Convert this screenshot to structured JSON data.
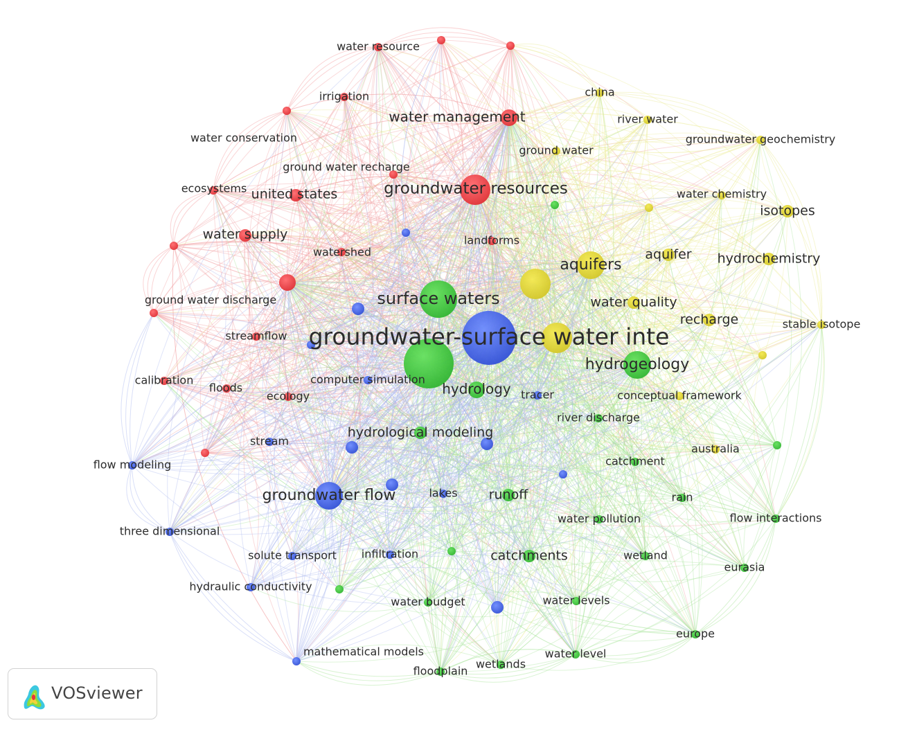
{
  "colors": {
    "cluster_red": "#e8363b",
    "cluster_green": "#3cc23c",
    "cluster_blue": "#3b5de0",
    "cluster_yellow": "#dcd030",
    "edge_red": "#f3a0a2",
    "edge_green": "#a9e59a",
    "edge_blue": "#aab9ef",
    "edge_yellow": "#ecec9c",
    "label": "#2b2b2b"
  },
  "brand": {
    "name": "VOSviewer",
    "logo_icon": "vosviewer-logo-icon"
  },
  "nodes": [
    {
      "id": "n1",
      "label": "water resource",
      "c": "red",
      "w": 2
    },
    {
      "id": "n2",
      "label": "irrigation",
      "c": "red",
      "w": 2
    },
    {
      "id": "n3",
      "label": "water management",
      "c": "red",
      "w": 4
    },
    {
      "id": "n4",
      "label": "water conservation",
      "c": "red",
      "w": 2
    },
    {
      "id": "n5",
      "label": "ground water recharge",
      "c": "red",
      "w": 2
    },
    {
      "id": "n6",
      "label": "ecosystems",
      "c": "red",
      "w": 2
    },
    {
      "id": "n7",
      "label": "united states",
      "c": "red",
      "w": 3
    },
    {
      "id": "n8",
      "label": "groundwater resources",
      "c": "red",
      "w": 6
    },
    {
      "id": "n9",
      "label": "water supply",
      "c": "red",
      "w": 3
    },
    {
      "id": "n10",
      "label": "watershed",
      "c": "red",
      "w": 2
    },
    {
      "id": "n11",
      "label": "landforms",
      "c": "red",
      "w": 2
    },
    {
      "id": "n12",
      "label": "ground water discharge",
      "c": "red",
      "w": 2
    },
    {
      "id": "n13",
      "label": "streamflow",
      "c": "red",
      "w": 2
    },
    {
      "id": "n14",
      "label": "calibration",
      "c": "red",
      "w": 2
    },
    {
      "id": "n15",
      "label": "floods",
      "c": "red",
      "w": 2
    },
    {
      "id": "n16",
      "label": "ecology",
      "c": "red",
      "w": 2
    },
    {
      "id": "n17",
      "label": "",
      "c": "red",
      "w": 4
    },
    {
      "id": "n18",
      "label": "",
      "c": "red",
      "w": 2
    },
    {
      "id": "n19",
      "label": "",
      "c": "red",
      "w": 2
    },
    {
      "id": "n20",
      "label": "",
      "c": "red",
      "w": 2
    },
    {
      "id": "n21",
      "label": "",
      "c": "red",
      "w": 2
    },
    {
      "id": "n22",
      "label": "china",
      "c": "yellow",
      "w": 2
    },
    {
      "id": "n23",
      "label": "river water",
      "c": "yellow",
      "w": 2
    },
    {
      "id": "n24",
      "label": "groundwater geochemistry",
      "c": "yellow",
      "w": 2
    },
    {
      "id": "n25",
      "label": "ground water",
      "c": "yellow",
      "w": 2
    },
    {
      "id": "n26",
      "label": "water chemistry",
      "c": "yellow",
      "w": 2
    },
    {
      "id": "n27",
      "label": "isotopes",
      "c": "yellow",
      "w": 3
    },
    {
      "id": "n28",
      "label": "aquifer",
      "c": "yellow",
      "w": 3
    },
    {
      "id": "n29",
      "label": "hydrochemistry",
      "c": "yellow",
      "w": 3
    },
    {
      "id": "n30",
      "label": "aquifers",
      "c": "yellow",
      "w": 5
    },
    {
      "id": "n31",
      "label": "water quality",
      "c": "yellow",
      "w": 3
    },
    {
      "id": "n32",
      "label": "recharge",
      "c": "yellow",
      "w": 3
    },
    {
      "id": "n33",
      "label": "stable isotope",
      "c": "yellow",
      "w": 2
    },
    {
      "id": "n34",
      "label": "conceptual framework",
      "c": "yellow",
      "w": 2
    },
    {
      "id": "n35",
      "label": "australia",
      "c": "yellow",
      "w": 2
    },
    {
      "id": "n36",
      "label": "",
      "c": "yellow",
      "w": 6
    },
    {
      "id": "n37",
      "label": "",
      "c": "yellow",
      "w": 6
    },
    {
      "id": "n38",
      "label": "",
      "c": "yellow",
      "w": 2
    },
    {
      "id": "n39",
      "label": "",
      "c": "yellow",
      "w": 2
    },
    {
      "id": "n40",
      "label": "surface waters",
      "c": "green",
      "w": 7
    },
    {
      "id": "n41",
      "label": "hydrology",
      "c": "green",
      "w": 4
    },
    {
      "id": "n42",
      "label": "hydrogeology",
      "c": "green",
      "w": 5
    },
    {
      "id": "n43",
      "label": "hydrological modeling",
      "c": "green",
      "w": 3
    },
    {
      "id": "n44",
      "label": "runoff",
      "c": "green",
      "w": 3
    },
    {
      "id": "n45",
      "label": "catchment",
      "c": "green",
      "w": 2
    },
    {
      "id": "n46",
      "label": "river discharge",
      "c": "green",
      "w": 2
    },
    {
      "id": "n47",
      "label": "rain",
      "c": "green",
      "w": 2
    },
    {
      "id": "n48",
      "label": "water pollution",
      "c": "green",
      "w": 2
    },
    {
      "id": "n49",
      "label": "flow interactions",
      "c": "green",
      "w": 2
    },
    {
      "id": "n50",
      "label": "catchments",
      "c": "green",
      "w": 3
    },
    {
      "id": "n51",
      "label": "wetland",
      "c": "green",
      "w": 2
    },
    {
      "id": "n52",
      "label": "eurasia",
      "c": "green",
      "w": 2
    },
    {
      "id": "n53",
      "label": "water budget",
      "c": "green",
      "w": 2
    },
    {
      "id": "n54",
      "label": "water levels",
      "c": "green",
      "w": 2
    },
    {
      "id": "n55",
      "label": "europe",
      "c": "green",
      "w": 2
    },
    {
      "id": "n56",
      "label": "water level",
      "c": "green",
      "w": 2
    },
    {
      "id": "n57",
      "label": "wetlands",
      "c": "green",
      "w": 2
    },
    {
      "id": "n58",
      "label": "floodplain",
      "c": "green",
      "w": 2
    },
    {
      "id": "n59",
      "label": "",
      "c": "green",
      "w": 8
    },
    {
      "id": "n60",
      "label": "",
      "c": "green",
      "w": 2
    },
    {
      "id": "n61",
      "label": "",
      "c": "green",
      "w": 2
    },
    {
      "id": "n62",
      "label": "",
      "c": "green",
      "w": 2
    },
    {
      "id": "n63",
      "label": "",
      "c": "green",
      "w": 2
    },
    {
      "id": "n64",
      "label": "groundwater-surface water inte",
      "c": "blue",
      "w": 10
    },
    {
      "id": "n65",
      "label": "computer simulation",
      "c": "blue",
      "w": 2
    },
    {
      "id": "n66",
      "label": "tracer",
      "c": "blue",
      "w": 2
    },
    {
      "id": "n67",
      "label": "stream",
      "c": "blue",
      "w": 2
    },
    {
      "id": "n68",
      "label": "flow modeling",
      "c": "blue",
      "w": 2
    },
    {
      "id": "n69",
      "label": "groundwater flow",
      "c": "blue",
      "w": 5
    },
    {
      "id": "n70",
      "label": "lakes",
      "c": "blue",
      "w": 2
    },
    {
      "id": "n71",
      "label": "three dimensional",
      "c": "blue",
      "w": 2
    },
    {
      "id": "n72",
      "label": "solute transport",
      "c": "blue",
      "w": 2
    },
    {
      "id": "n73",
      "label": "infiltration",
      "c": "blue",
      "w": 2
    },
    {
      "id": "n74",
      "label": "hydraulic conductivity",
      "c": "blue",
      "w": 2
    },
    {
      "id": "n75",
      "label": "mathematical models",
      "c": "blue",
      "w": 2
    },
    {
      "id": "n76",
      "label": "",
      "c": "blue",
      "w": 3
    },
    {
      "id": "n77",
      "label": "",
      "c": "blue",
      "w": 3
    },
    {
      "id": "n78",
      "label": "",
      "c": "blue",
      "w": 3
    },
    {
      "id": "n79",
      "label": "",
      "c": "blue",
      "w": 3
    },
    {
      "id": "n80",
      "label": "",
      "c": "blue",
      "w": 2
    },
    {
      "id": "n81",
      "label": "",
      "c": "blue",
      "w": 2
    },
    {
      "id": "n82",
      "label": "",
      "c": "blue",
      "w": 3
    },
    {
      "id": "n83",
      "label": "",
      "c": "blue",
      "w": 2
    }
  ]
}
